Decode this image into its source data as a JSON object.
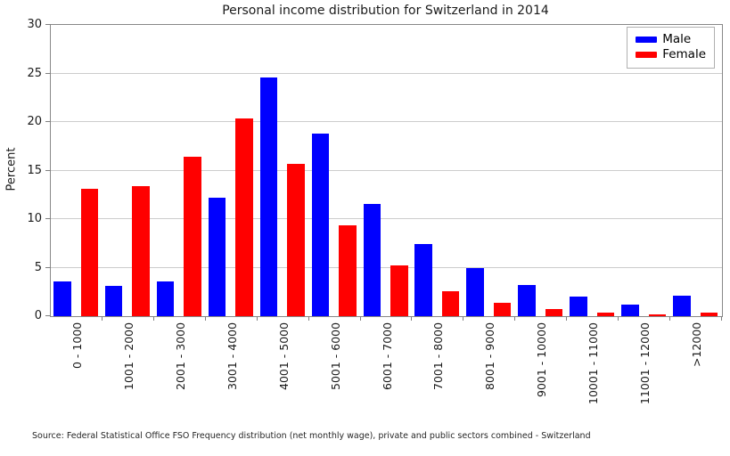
{
  "chart_data": {
    "type": "bar",
    "title": "Personal income distribution for Switzerland in 2014",
    "xlabel": "",
    "ylabel": "Percent",
    "ylim": [
      0,
      30
    ],
    "yticks": [
      0,
      5,
      10,
      15,
      20,
      25,
      30
    ],
    "grid": "horizontal",
    "legend_position": "top-right",
    "categories": [
      "0 - 1000",
      "1001 - 2000",
      "2001 - 3000",
      "3001 - 4000",
      "4001 - 5000",
      "5001 - 6000",
      "6001 - 7000",
      "7001 - 8000",
      "8001 - 9000",
      "9001 - 10000",
      "10001 - 11000",
      "11001 - 12000",
      ">12000"
    ],
    "series": [
      {
        "name": "Male",
        "color": "#0000ff",
        "values": [
          3.6,
          3.1,
          3.6,
          12.2,
          24.6,
          18.8,
          11.6,
          7.4,
          5.0,
          3.2,
          2.0,
          1.2,
          2.1
        ]
      },
      {
        "name": "Female",
        "color": "#ff0000",
        "values": [
          13.1,
          13.4,
          16.4,
          20.4,
          15.7,
          9.4,
          5.2,
          2.6,
          1.4,
          0.7,
          0.4,
          0.2,
          0.4
        ]
      }
    ],
    "source": "Source: Federal Statistical Office FSO Frequency distribution (net monthly wage), private and public sectors combined - Switzerland"
  }
}
